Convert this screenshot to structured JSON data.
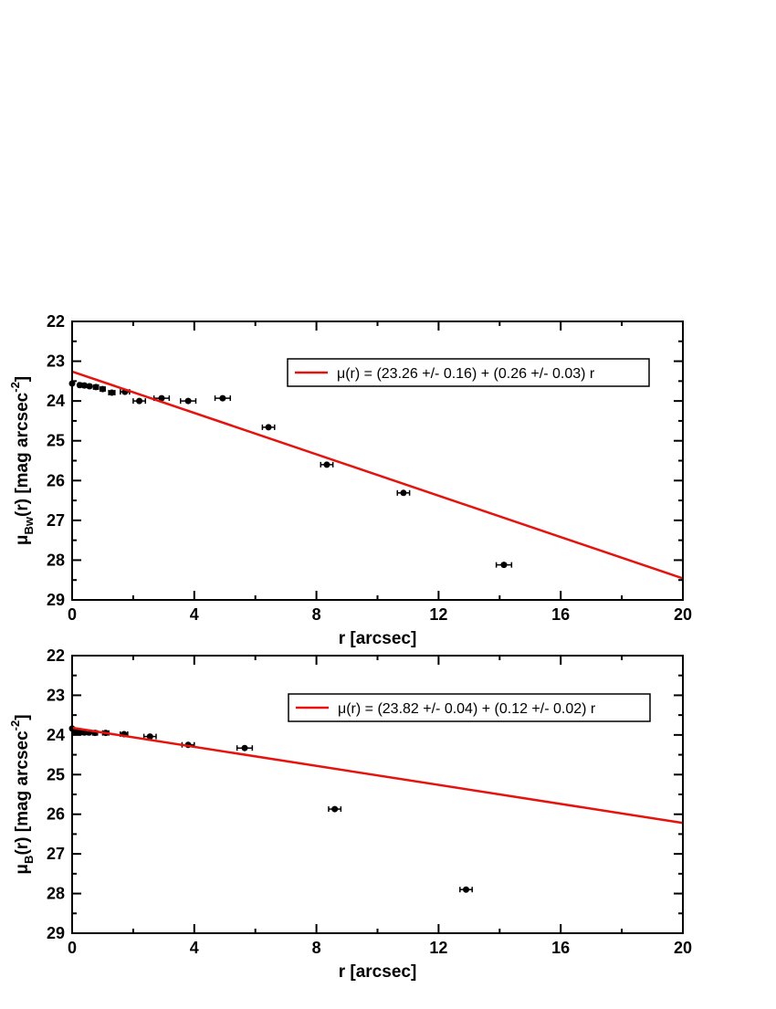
{
  "chart_data": [
    {
      "type": "scatter",
      "xlabel": "r [arcsec]",
      "ylabel": {
        "main": "μ",
        "sub": "Bw",
        "mid": "(r) [mag arcsec",
        "sup": "-2",
        "end": "]"
      },
      "xlim": [
        0,
        20
      ],
      "ylim": [
        22,
        29
      ],
      "y_inverted": true,
      "xticks": [
        0,
        4,
        8,
        12,
        16,
        20
      ],
      "yticks": [
        22,
        23,
        24,
        25,
        26,
        27,
        28,
        29
      ],
      "xminorticks": [
        2,
        6,
        10,
        14,
        18
      ],
      "yminorticks": [
        22.5,
        23.5,
        24.5,
        25.5,
        26.5,
        27.5,
        28.5
      ],
      "points": {
        "color": "#000000",
        "x": [
          0,
          0.25,
          0.4,
          0.57,
          0.78,
          1.0,
          1.3,
          1.73,
          2.2,
          2.93,
          3.8,
          4.93,
          6.43,
          8.34,
          10.85,
          14.14
        ],
        "values": [
          23.56,
          23.6,
          23.61,
          23.63,
          23.65,
          23.7,
          23.79,
          23.77,
          24.0,
          23.93,
          24.0,
          23.93,
          24.66,
          25.6,
          26.31,
          28.12
        ],
        "xerr": [
          0,
          0.05,
          0.05,
          0.05,
          0.08,
          0.08,
          0.1,
          0.15,
          0.2,
          0.25,
          0.25,
          0.25,
          0.2,
          0.2,
          0.2,
          0.25
        ]
      },
      "fit": {
        "name": "μ(r) = (23.26 +/- 0.16) + (0.26 +/- 0.03) r",
        "color": "#e8120c",
        "intercept": 23.26,
        "slope": 0.26
      }
    },
    {
      "type": "scatter",
      "xlabel": "r [arcsec]",
      "ylabel": {
        "main": "μ",
        "sub": "B",
        "mid": "(r) [mag arcsec",
        "sup": "-2",
        "end": "]"
      },
      "xlim": [
        0,
        20
      ],
      "ylim": [
        22,
        29
      ],
      "y_inverted": true,
      "xticks": [
        0,
        4,
        8,
        12,
        16,
        20
      ],
      "yticks": [
        22,
        23,
        24,
        25,
        26,
        27,
        28,
        29
      ],
      "xminorticks": [
        2,
        6,
        10,
        14,
        18
      ],
      "yminorticks": [
        22.5,
        23.5,
        24.5,
        25.5,
        26.5,
        27.5,
        28.5
      ],
      "points": {
        "color": "#000000",
        "x": [
          0,
          0.12,
          0.25,
          0.4,
          0.55,
          0.75,
          1.1,
          1.7,
          2.55,
          3.8,
          5.65,
          8.6,
          12.9
        ],
        "values": [
          23.84,
          23.93,
          23.94,
          23.94,
          23.94,
          23.95,
          23.95,
          23.98,
          24.04,
          24.25,
          24.33,
          25.87,
          27.9
        ],
        "xerr": [
          0,
          0.05,
          0.05,
          0.05,
          0.05,
          0.08,
          0.1,
          0.12,
          0.2,
          0.2,
          0.25,
          0.2,
          0.2
        ]
      },
      "fit": {
        "name": "μ(r) = (23.82 +/- 0.04) + (0.12 +/- 0.02) r",
        "color": "#e8120c",
        "intercept": 23.82,
        "slope": 0.12
      }
    }
  ]
}
